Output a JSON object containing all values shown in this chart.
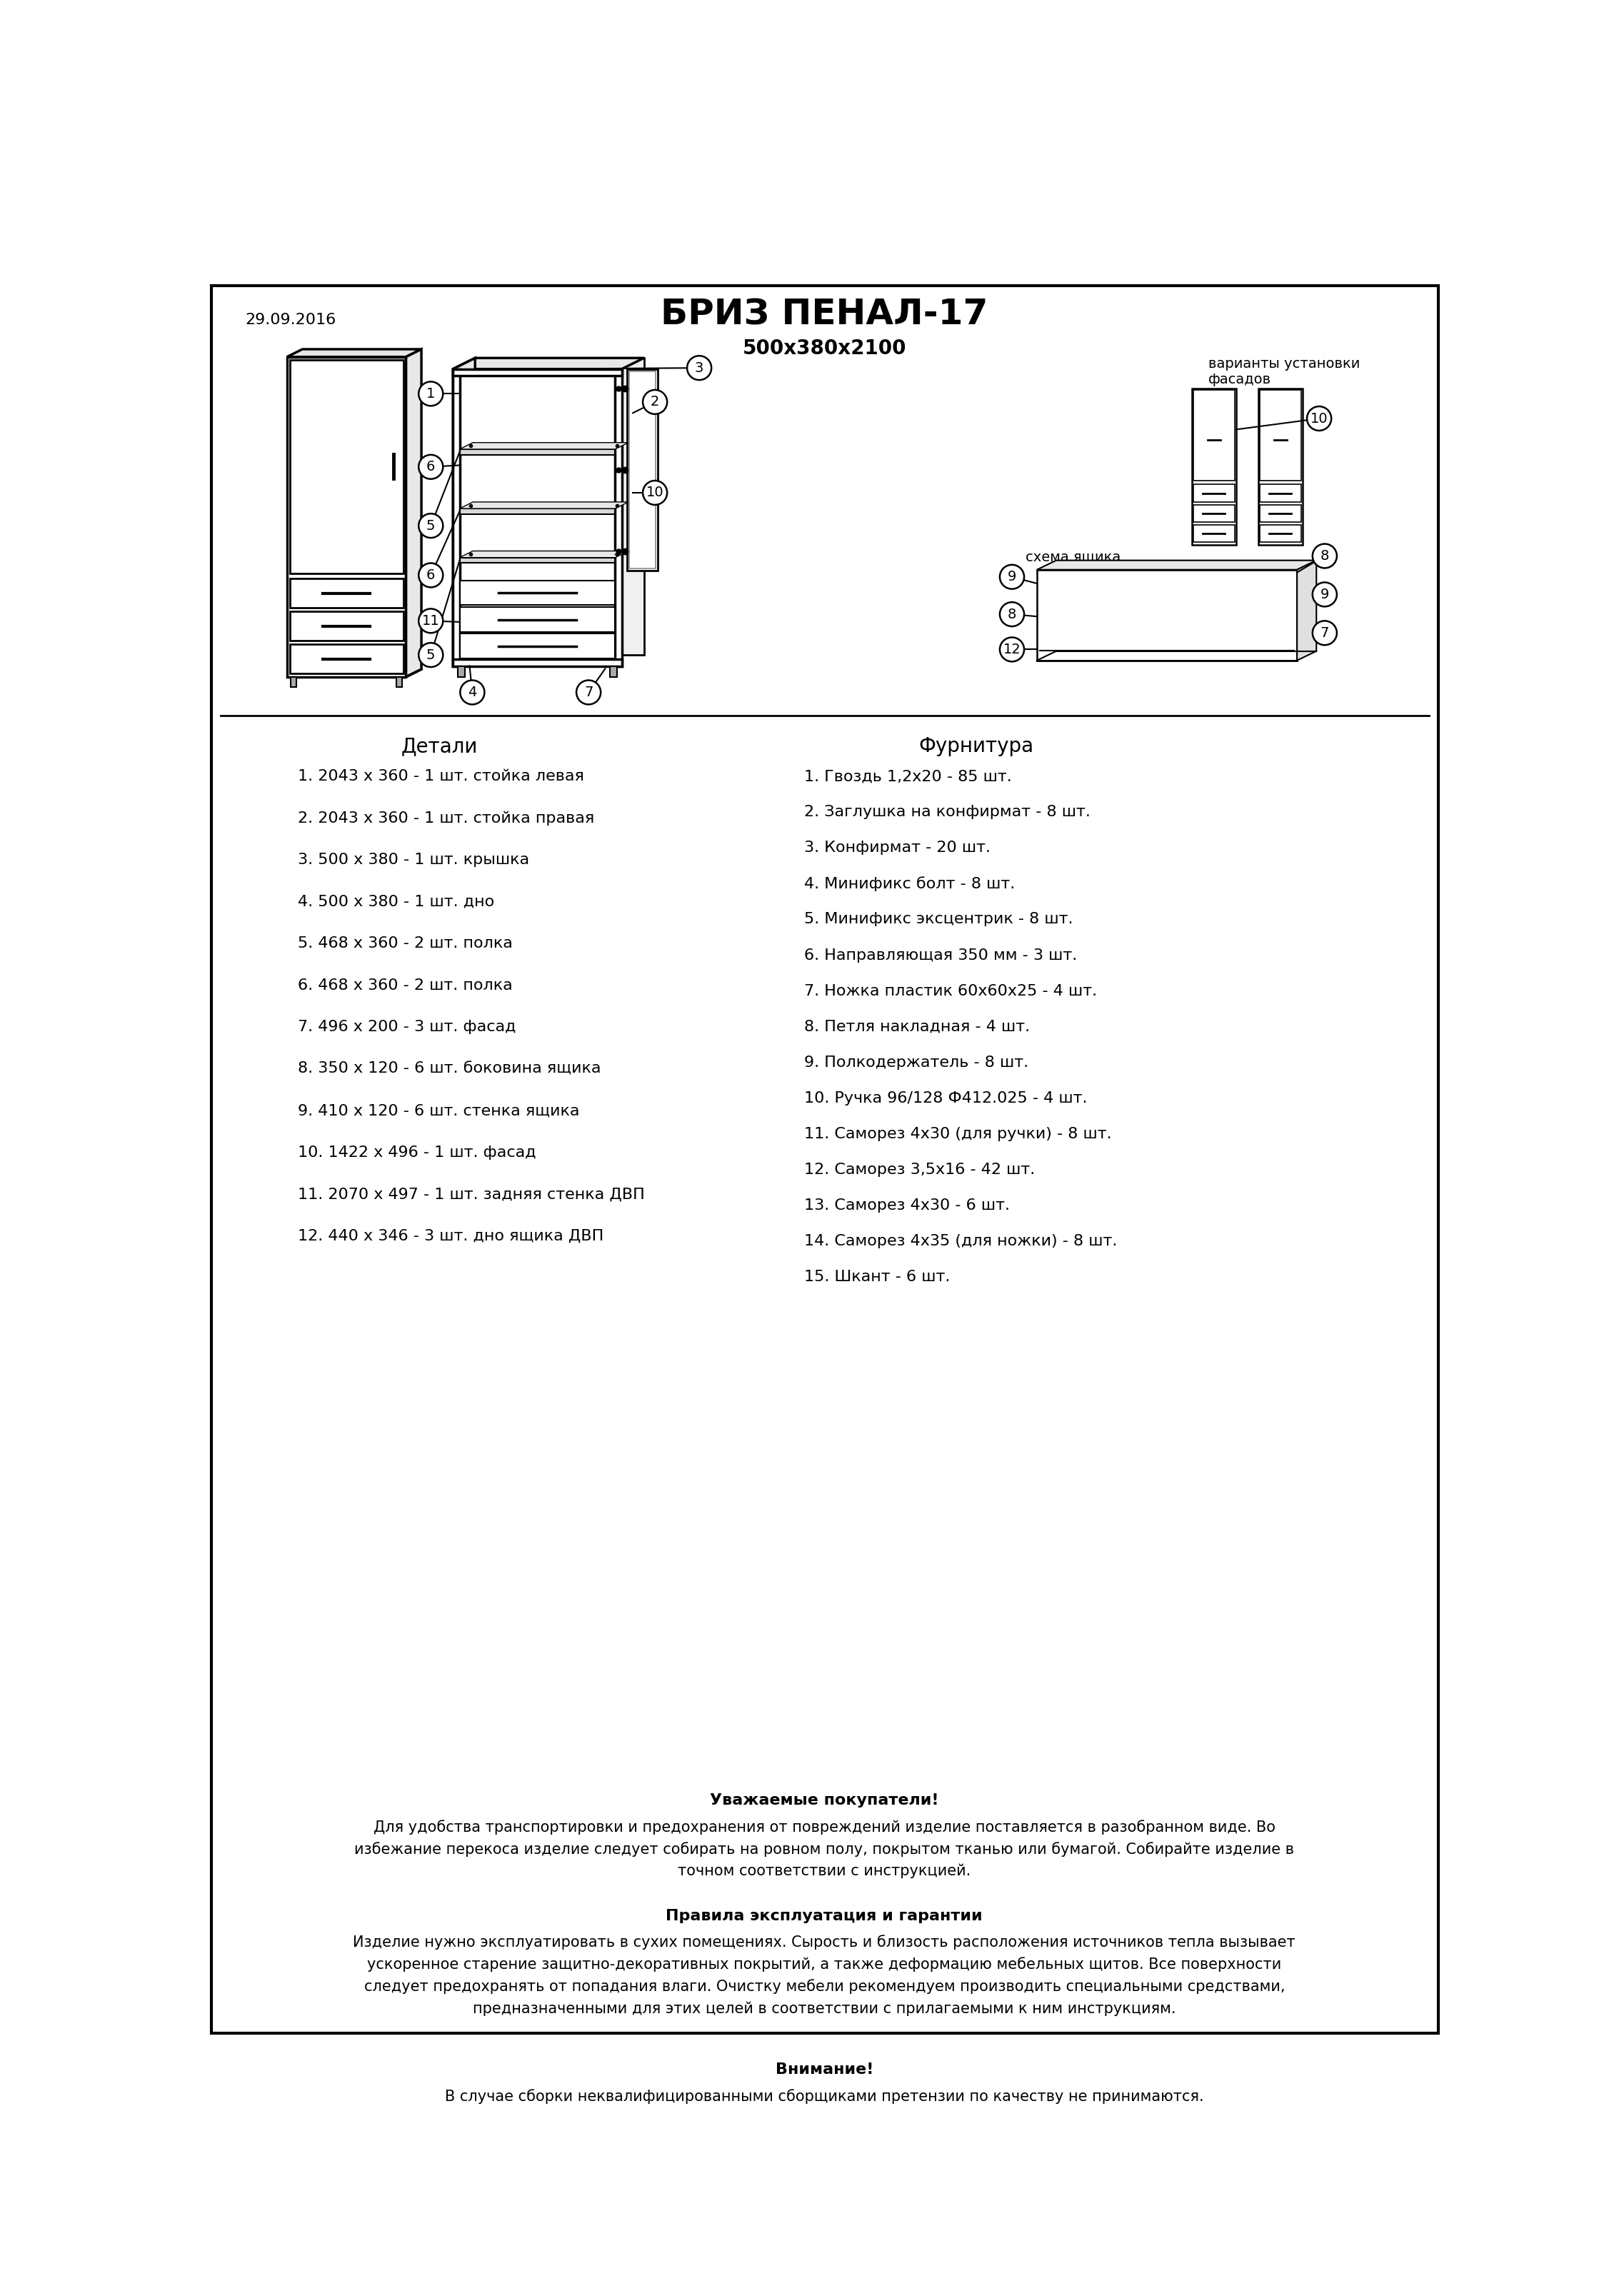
{
  "title": "БРИЗ ПЕНАЛ-17",
  "subtitle": "500х380х2100",
  "date": "29.09.2016",
  "bg_color": "#ffffff",
  "title_fontsize": 36,
  "subtitle_fontsize": 20,
  "date_fontsize": 16,
  "body_fontsize": 16,
  "header_fontsize": 20,
  "details_title": "Детали",
  "furniture_title": "Фурнитура",
  "details": [
    "1. 2043 х 360 - 1 шт. стойка левая",
    "2. 2043 х 360 - 1 шт. стойка правая",
    "3. 500 х 380 - 1 шт. крышка",
    "4. 500 х 380 - 1 шт. дно",
    "5. 468 х 360 - 2 шт. полка",
    "6. 468 х 360 - 2 шт. полка",
    "7. 496 х 200 - 3 шт. фасад",
    "8. 350 х 120 - 6 шт. боковина ящика",
    "9. 410 х 120 - 6 шт. стенка ящика",
    "10. 1422 х 496 - 1 шт. фасад",
    "11. 2070 х 497 - 1 шт. задняя стенка ДВП",
    "12. 440 х 346 - 3 шт. дно ящика ДВП"
  ],
  "furniture": [
    "1. Гвоздь 1,2х20 - 85 шт.",
    "2. Заглушка на конфирмат - 8 шт.",
    "3. Конфирмат - 20 шт.",
    "4. Минификс болт - 8 шт.",
    "5. Минификс эксцентрик - 8 шт.",
    "6. Направляющая 350 мм - 3 шт.",
    "7. Ножка пластик 60х60х25 - 4 шт.",
    "8. Петля накладная - 4 шт.",
    "9. Полкодержатель - 8 шт.",
    "10. Ручка 96/128 Ф412.025 - 4 шт.",
    "11. Саморез 4х30 (для ручки) - 8 шт.",
    "12. Саморез 3,5х16 - 42 шт.",
    "13. Саморез 4х30 - 6 шт.",
    "14. Саморез 4х35 (для ножки) - 8 шт.",
    "15. Шкант - 6 шт."
  ],
  "notice_bold1": "Уважаемые покупатели!",
  "notice_text1": "Для удобства транспортировки и предохранения от повреждений изделие поставляется в разобранном виде. Во\nизбежание перекоса изделие следует собирать на ровном полу, покрытом тканью или бумагой. Собирайте изделие в\nточном соответствии с инструкцией.",
  "notice_bold2": "Правила эксплуатация и гарантии",
  "notice_text2": "Изделие нужно эксплуатировать в сухих помещениях. Сырость и близость расположения источников тепла вызывает\nускоренное старение защитно-декоративных покрытий, а также деформацию мебельных щитов. Все поверхности\nследует предохранять от попадания влаги. Очистку мебели рекомендуем производить специальными средствами,\nпредназначенными для этих целей в соответствии с прилагаемыми к ним инструкциям.",
  "notice_bold3": "Внимание!",
  "notice_text3": "В случае сборки неквалифицированными сборщиками претензии по качеству не принимаются.",
  "label_variants": "варианты установки\nфасадов",
  "label_schema": "схема ящика"
}
